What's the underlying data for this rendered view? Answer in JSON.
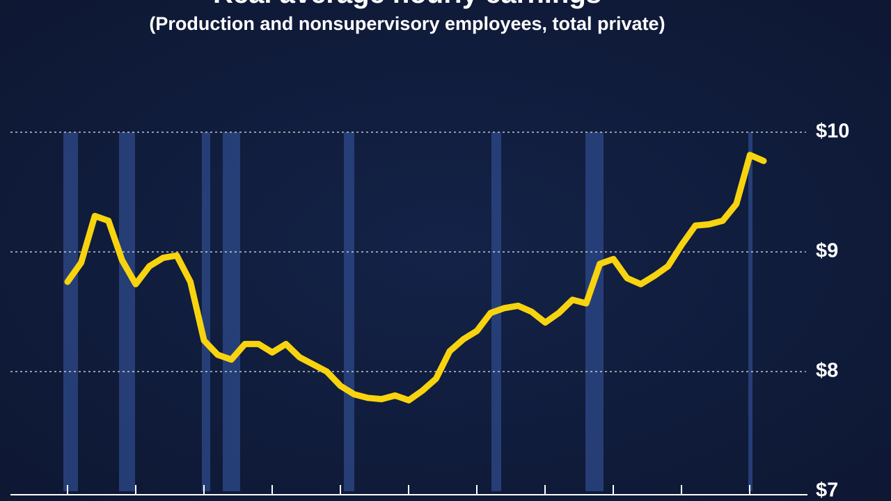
{
  "chart_data": {
    "type": "line",
    "title": "Real average hourly earnings",
    "subtitle": "(Production and nonsupervisory employees, total private)",
    "categories": [
      null,
      null,
      null,
      null,
      null,
      null,
      null,
      null,
      null,
      null,
      null,
      null,
      null,
      null,
      null,
      null,
      null,
      null,
      null,
      null,
      null,
      null,
      null,
      null,
      null,
      null,
      null,
      null,
      null,
      null,
      null,
      null,
      null,
      null,
      null,
      null,
      null,
      null,
      null,
      null,
      null,
      null,
      null,
      null,
      null,
      null,
      null,
      null,
      null,
      null,
      null,
      null
    ],
    "series": [
      {
        "color": "#f7d40f",
        "values": [
          8.75,
          8.91,
          9.3,
          9.26,
          8.93,
          8.73,
          8.88,
          8.95,
          8.97,
          8.75,
          8.26,
          8.14,
          8.1,
          8.23,
          8.23,
          8.16,
          8.23,
          8.12,
          8.06,
          8.0,
          7.88,
          7.81,
          7.78,
          7.77,
          7.8,
          7.76,
          7.84,
          7.94,
          8.17,
          8.27,
          8.34,
          8.49,
          8.53,
          8.55,
          8.5,
          8.41,
          8.49,
          8.6,
          8.57,
          8.9,
          8.94,
          8.78,
          8.73,
          8.8,
          8.88,
          9.06,
          9.22,
          9.23,
          9.26,
          9.4,
          9.81,
          9.76
        ]
      }
    ],
    "ylim": [
      7,
      10
    ],
    "yticks": [
      {
        "value": 7,
        "label": "$7"
      },
      {
        "value": 8,
        "label": "$8"
      },
      {
        "value": 9,
        "label": "$9"
      },
      {
        "value": 10,
        "label": "$10"
      }
    ],
    "grid": true
  }
}
